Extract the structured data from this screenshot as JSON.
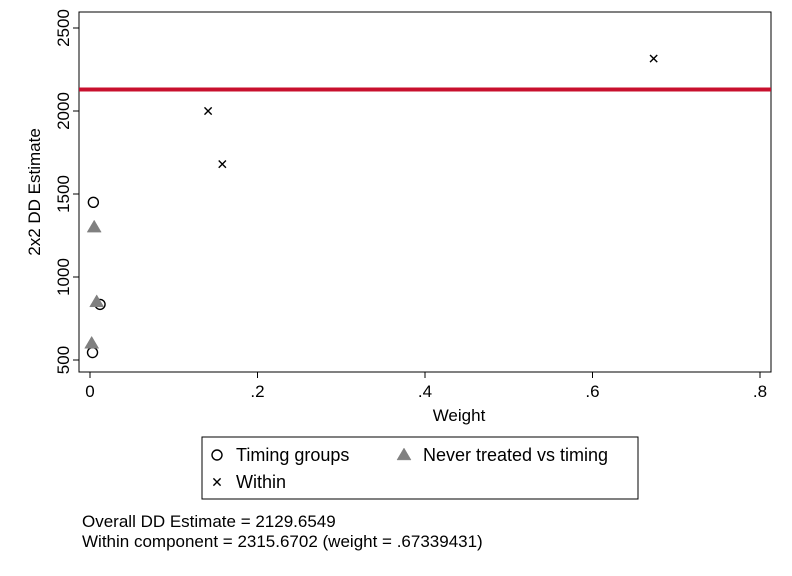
{
  "chart_data": {
    "type": "scatter",
    "title": "",
    "xlabel": "Weight",
    "ylabel": "2x2 DD Estimate",
    "xlim": [
      0,
      0.82
    ],
    "ylim": [
      470,
      2590
    ],
    "x_ticks": [
      0,
      0.2,
      0.4,
      0.6,
      0.8
    ],
    "x_tick_labels": [
      "0",
      ".2",
      ".4",
      ".6",
      ".8"
    ],
    "y_ticks": [
      500,
      1000,
      1500,
      2000,
      2500
    ],
    "y_tick_labels": [
      "500",
      "1000",
      "1500",
      "2000",
      "2500"
    ],
    "grid": false,
    "legend_position": "bottom",
    "reference_line": {
      "y": 2129.6549,
      "color": "#c8102e"
    },
    "series": [
      {
        "name": "Timing groups",
        "marker": "circle",
        "color": "#000000",
        "points": [
          {
            "x": 0.004,
            "y": 1450
          },
          {
            "x": 0.012,
            "y": 835
          },
          {
            "x": 0.003,
            "y": 545
          }
        ]
      },
      {
        "name": "Never treated vs timing",
        "marker": "triangle",
        "color": "#808080",
        "points": [
          {
            "x": 0.005,
            "y": 1300
          },
          {
            "x": 0.008,
            "y": 850
          },
          {
            "x": 0.002,
            "y": 600
          }
        ]
      },
      {
        "name": "Within",
        "marker": "x",
        "color": "#000000",
        "points": [
          {
            "x": 0.141,
            "y": 2000
          },
          {
            "x": 0.158,
            "y": 1680
          },
          {
            "x": 0.673,
            "y": 2316
          }
        ]
      }
    ]
  },
  "notes": {
    "overall": "Overall DD Estimate = 2129.6549",
    "within": "Within component = 2315.6702 (weight = .67339431)"
  }
}
